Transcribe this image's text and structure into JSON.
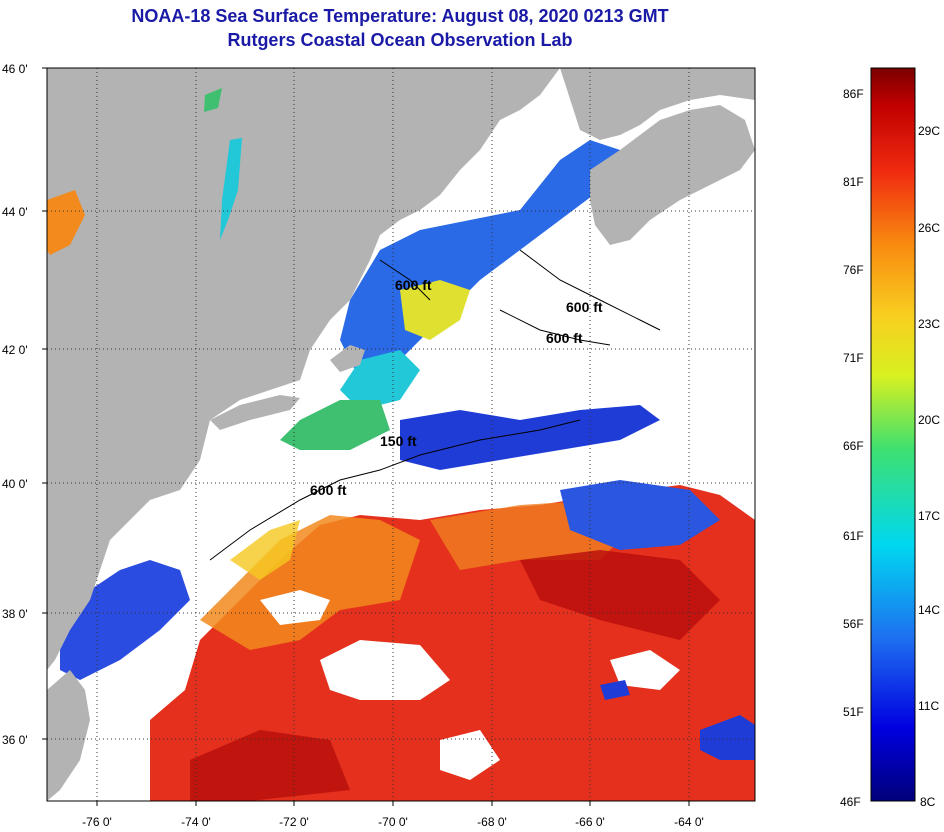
{
  "header": {
    "title": "NOAA-18 Sea Surface Temperature:  August 08, 2020 0213 GMT",
    "subtitle": "Rutgers Coastal Ocean Observation Lab"
  },
  "map": {
    "lat_labels": [
      "46 0'",
      "44 0'",
      "42 0'",
      "40 0'",
      "38 0'",
      "36 0'"
    ],
    "lon_labels": [
      "-76 0'",
      "-74 0'",
      "-72 0'",
      "-70 0'",
      "-68 0'",
      "-66 0'",
      "-64 0'"
    ],
    "contour_labels": [
      "600 ft",
      "600 ft",
      "600 ft",
      "150 ft",
      "600 ft"
    ],
    "colors": {
      "land": "#b3b3b3",
      "cloud": "#ffffff",
      "warm": "#e0281a",
      "cool": "#1f3cd6",
      "mid": "#f5c81e",
      "cyan": "#22d0e0"
    }
  },
  "colorbar": {
    "fahrenheit_labels": [
      "86F",
      "81F",
      "76F",
      "71F",
      "66F",
      "61F",
      "56F",
      "51F",
      "46F"
    ],
    "celsius_labels": [
      "29C",
      "26C",
      "23C",
      "20C",
      "17C",
      "14C",
      "11C",
      "8C"
    ],
    "range_f": [
      46,
      88
    ]
  }
}
